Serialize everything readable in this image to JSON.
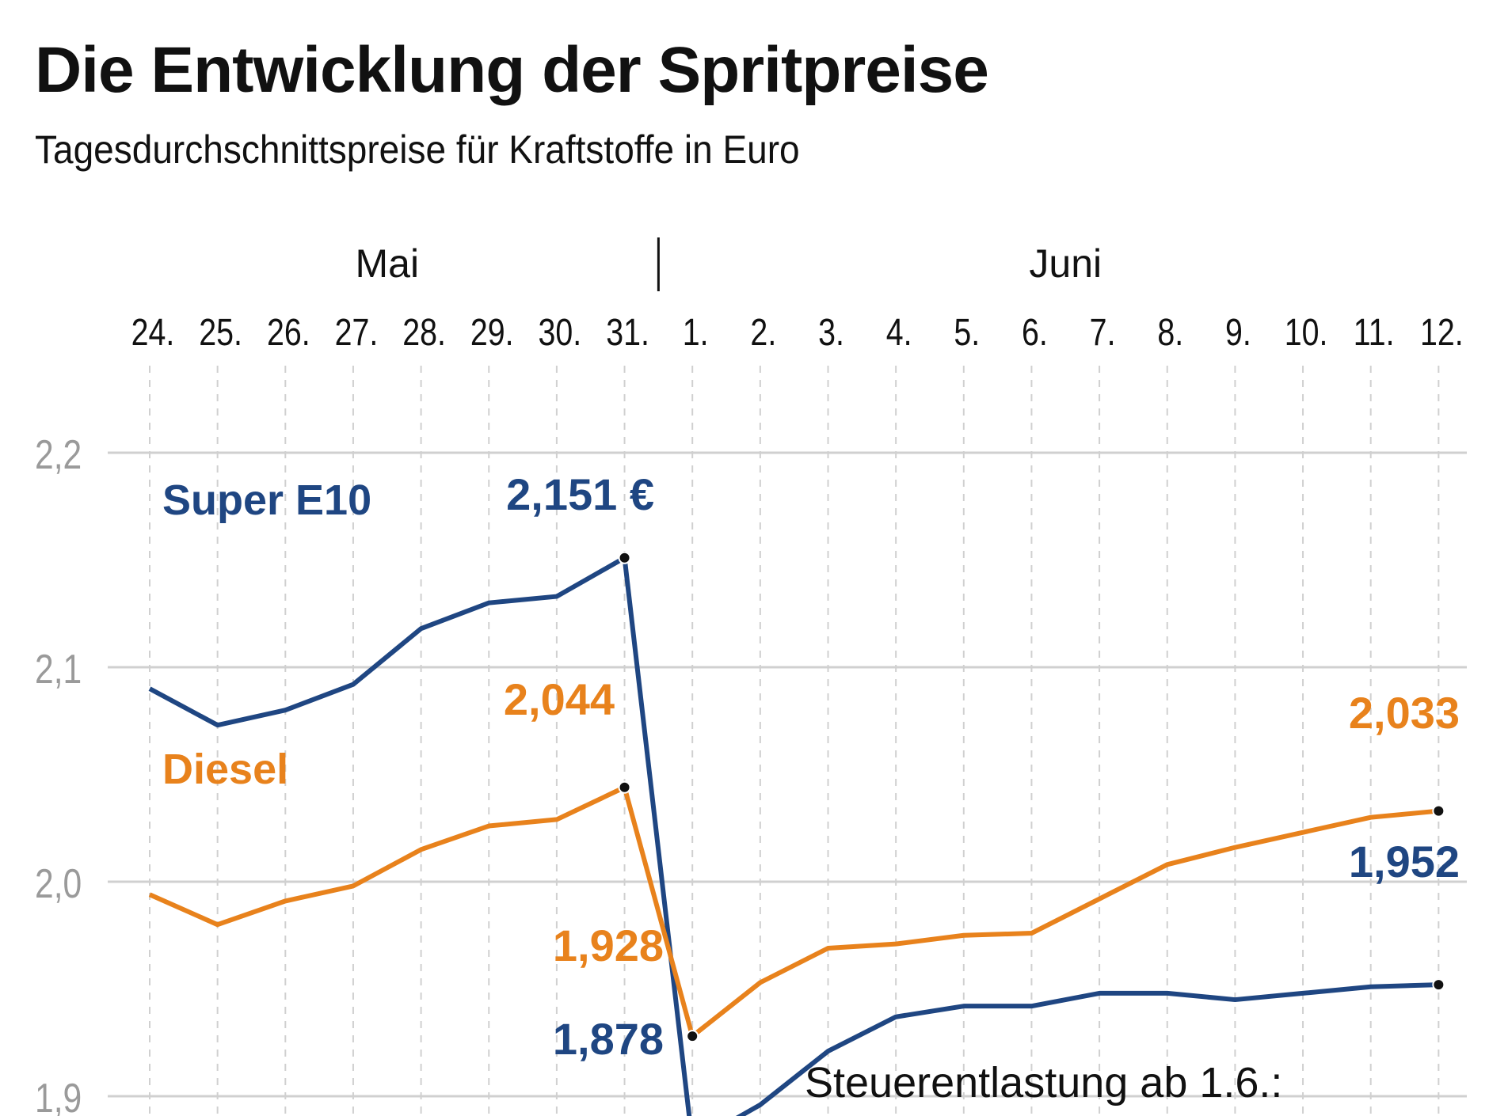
{
  "title": "Die Entwicklung der Spritpreise",
  "subtitle": "Tagesdurchschnittspreise für Kraftstoffe in Euro",
  "note": "Steuerentlastung ab 1.6.:",
  "chart_data": {
    "type": "line",
    "title": "Die Entwicklung der Spritpreise",
    "subtitle": "Tagesdurchschnittspreise für Kraftstoffe in Euro",
    "month_labels": [
      {
        "label": "Mai",
        "from": 0,
        "to": 7
      },
      {
        "label": "Juni",
        "from": 8,
        "to": 19
      }
    ],
    "categories": [
      "24.",
      "25.",
      "26.",
      "27.",
      "28.",
      "29.",
      "30.",
      "31.",
      "1.",
      "2.",
      "3.",
      "4.",
      "5.",
      "6.",
      "7.",
      "8.",
      "9.",
      "10.",
      "11.",
      "12."
    ],
    "y_ticks": [
      {
        "value": 2.2,
        "label": "2,2"
      },
      {
        "value": 2.1,
        "label": "2,1"
      },
      {
        "value": 2.0,
        "label": "2,0"
      },
      {
        "value": 1.9,
        "label": "1,9"
      }
    ],
    "ylim": [
      1.9,
      2.2
    ],
    "grid": true,
    "colors": {
      "Super E10": "#1f4682",
      "Diesel": "#e8821c",
      "axis_text": "#9a9a9a",
      "grid": "#d0d0d0"
    },
    "series": [
      {
        "name": "Super E10",
        "values": [
          2.09,
          2.073,
          2.08,
          2.092,
          2.118,
          2.13,
          2.133,
          2.151,
          1.878,
          1.896,
          1.921,
          1.937,
          1.942,
          1.942,
          1.948,
          1.948,
          1.945,
          1.948,
          1.951,
          1.952
        ]
      },
      {
        "name": "Diesel",
        "values": [
          1.994,
          1.98,
          1.991,
          1.998,
          2.015,
          2.026,
          2.029,
          2.044,
          1.928,
          1.953,
          1.969,
          1.971,
          1.975,
          1.976,
          1.992,
          2.008,
          2.016,
          2.023,
          2.03,
          2.033
        ]
      }
    ],
    "annotations": [
      {
        "series": "Super E10",
        "index": 7,
        "label": "2,151 €"
      },
      {
        "series": "Super E10",
        "index": 8,
        "label": "1,878"
      },
      {
        "series": "Super E10",
        "index": 19,
        "label": "1,952"
      },
      {
        "series": "Diesel",
        "index": 7,
        "label": "2,044"
      },
      {
        "series": "Diesel",
        "index": 8,
        "label": "1,928"
      },
      {
        "series": "Diesel",
        "index": 19,
        "label": "2,033"
      }
    ]
  }
}
